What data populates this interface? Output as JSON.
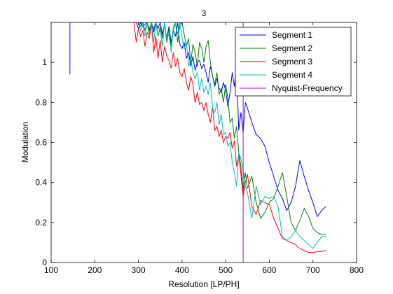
{
  "chart_data": {
    "type": "line",
    "title": "3",
    "xlabel": "Resolution [LP/PH]",
    "ylabel": "Modulation",
    "xlim": [
      100,
      800
    ],
    "ylim": [
      0,
      1.2
    ],
    "xticks": [
      100,
      200,
      300,
      400,
      500,
      600,
      700,
      800
    ],
    "yticks": [
      0,
      0.2,
      0.4,
      0.6,
      0.8,
      1
    ],
    "xtick_labels": [
      "100",
      "200",
      "300",
      "400",
      "500",
      "600",
      "700",
      "800"
    ],
    "ytick_labels": [
      "0",
      "0.2",
      "0.4",
      "0.6",
      "0.8",
      "1"
    ],
    "grid": false,
    "legend_position": "top-right",
    "series": [
      {
        "name": "Segment 1",
        "color": "#0000ff",
        "x": [
          143,
          143,
          295,
          300,
          305,
          310,
          315,
          320,
          325,
          330,
          335,
          340,
          345,
          350,
          355,
          360,
          365,
          370,
          375,
          380,
          385,
          390,
          395,
          400,
          405,
          410,
          415,
          420,
          425,
          430,
          435,
          440,
          445,
          450,
          455,
          460,
          465,
          470,
          475,
          480,
          485,
          490,
          495,
          500,
          505,
          510,
          515,
          520,
          525,
          530,
          535,
          540,
          545,
          550,
          560,
          570,
          580,
          590,
          600,
          610,
          620,
          630,
          640,
          650,
          660,
          670,
          680,
          690,
          700,
          710,
          720,
          730
        ],
        "y": [
          0.94,
          1.2,
          1.2,
          1.17,
          1.2,
          1.18,
          1.19,
          1.2,
          1.16,
          1.2,
          1.15,
          1.2,
          1.17,
          1.2,
          1.14,
          1.19,
          1.12,
          1.18,
          1.1,
          1.16,
          1.13,
          1.2,
          1.09,
          1.07,
          1.1,
          1.02,
          1.05,
          0.98,
          1.03,
          0.96,
          1.0,
          1.01,
          0.97,
          0.99,
          0.95,
          0.9,
          0.98,
          0.93,
          0.88,
          0.92,
          0.87,
          0.85,
          0.9,
          0.86,
          0.78,
          0.85,
          0.95,
          0.88,
          0.97,
          0.66,
          0.75,
          0.65,
          0.8,
          0.77,
          0.7,
          0.64,
          0.62,
          0.58,
          0.5,
          0.43,
          0.36,
          0.32,
          0.26,
          0.3,
          0.38,
          0.51,
          0.43,
          0.36,
          0.3,
          0.23,
          0.26,
          0.28
        ]
      },
      {
        "name": "Segment 2",
        "color": "#008000",
        "x": [
          300,
          305,
          310,
          315,
          320,
          325,
          330,
          335,
          340,
          345,
          350,
          355,
          360,
          365,
          370,
          375,
          380,
          385,
          390,
          395,
          400,
          405,
          410,
          415,
          420,
          425,
          430,
          435,
          440,
          445,
          450,
          455,
          460,
          465,
          470,
          475,
          480,
          485,
          490,
          495,
          500,
          505,
          510,
          515,
          520,
          525,
          530,
          535,
          540,
          545,
          550,
          560,
          570,
          580,
          590,
          600,
          610,
          620,
          630,
          640,
          650,
          660,
          670,
          680,
          690,
          700,
          710,
          720,
          730
        ],
        "y": [
          1.2,
          1.18,
          1.2,
          1.16,
          1.2,
          1.14,
          1.19,
          1.17,
          1.2,
          1.13,
          1.18,
          1.12,
          1.2,
          1.1,
          1.17,
          1.08,
          1.16,
          1.2,
          1.1,
          1.19,
          1.2,
          1.14,
          1.08,
          1.12,
          1.0,
          1.09,
          1.05,
          0.98,
          1.1,
          1.07,
          1.0,
          1.08,
          1.11,
          1.0,
          0.93,
          0.89,
          0.95,
          0.84,
          0.87,
          0.8,
          0.89,
          0.82,
          0.7,
          0.72,
          0.62,
          0.68,
          0.55,
          0.48,
          0.35,
          0.45,
          0.37,
          0.43,
          0.3,
          0.22,
          0.25,
          0.3,
          0.32,
          0.38,
          0.45,
          0.33,
          0.2,
          0.16,
          0.21,
          0.27,
          0.23,
          0.17,
          0.15,
          0.14,
          0.14
        ]
      },
      {
        "name": "Segment 3",
        "color": "#ff0000",
        "x": [
          290,
          295,
          300,
          305,
          310,
          315,
          320,
          325,
          330,
          335,
          340,
          345,
          350,
          355,
          360,
          365,
          370,
          375,
          380,
          385,
          390,
          395,
          400,
          405,
          410,
          415,
          420,
          425,
          430,
          435,
          440,
          445,
          450,
          455,
          460,
          465,
          470,
          475,
          480,
          485,
          490,
          495,
          500,
          505,
          510,
          515,
          520,
          525,
          530,
          535,
          540,
          545,
          550,
          560,
          570,
          580,
          590,
          600,
          610,
          620,
          630,
          640,
          650,
          660,
          670,
          680,
          690,
          700,
          710,
          720,
          730
        ],
        "y": [
          1.2,
          1.1,
          1.17,
          1.13,
          1.16,
          1.08,
          1.15,
          1.12,
          1.2,
          1.05,
          1.13,
          1.02,
          1.11,
          1.0,
          1.08,
          1.03,
          1.01,
          0.97,
          1.05,
          0.98,
          1.02,
          0.95,
          0.93,
          0.97,
          0.9,
          0.86,
          0.93,
          0.89,
          0.8,
          0.85,
          0.79,
          0.8,
          0.76,
          0.8,
          0.74,
          0.7,
          0.78,
          0.66,
          0.68,
          0.63,
          0.66,
          0.6,
          0.63,
          0.62,
          0.65,
          0.57,
          0.61,
          0.48,
          0.54,
          0.44,
          0.33,
          0.4,
          0.44,
          0.28,
          0.24,
          0.31,
          0.3,
          0.29,
          0.22,
          0.17,
          0.12,
          0.11,
          0.1,
          0.09,
          0.07,
          0.06,
          0.05,
          0.05,
          0.055,
          0.055,
          0.06
        ]
      },
      {
        "name": "Segment 4",
        "color": "#00bfbf",
        "x": [
          300,
          305,
          310,
          315,
          320,
          325,
          330,
          335,
          340,
          345,
          350,
          355,
          360,
          365,
          370,
          375,
          380,
          385,
          390,
          395,
          400,
          405,
          410,
          415,
          420,
          425,
          430,
          435,
          440,
          445,
          450,
          455,
          460,
          465,
          470,
          475,
          480,
          485,
          490,
          495,
          500,
          505,
          510,
          515,
          520,
          525,
          530,
          535,
          540,
          545,
          550,
          560,
          570,
          580,
          590,
          600,
          610,
          620,
          630,
          640,
          650,
          660,
          670,
          680,
          690,
          700,
          710,
          720,
          730
        ],
        "y": [
          1.2,
          1.16,
          1.19,
          1.13,
          1.2,
          1.17,
          1.2,
          1.1,
          1.2,
          1.14,
          1.16,
          1.08,
          1.2,
          1.12,
          1.14,
          1.05,
          1.18,
          1.2,
          1.14,
          1.2,
          1.12,
          1.07,
          1.1,
          0.98,
          1.03,
          0.95,
          0.92,
          0.95,
          0.86,
          0.92,
          0.85,
          0.88,
          0.84,
          0.9,
          0.77,
          0.75,
          0.8,
          0.69,
          0.74,
          0.64,
          0.65,
          0.58,
          0.6,
          0.5,
          0.45,
          0.38,
          0.55,
          0.52,
          0.46,
          0.38,
          0.35,
          0.22,
          0.38,
          0.29,
          0.33,
          0.32,
          0.33,
          0.28,
          0.13,
          0.11,
          0.13,
          0.16,
          0.13,
          0.11,
          0.09,
          0.07,
          0.1,
          0.13,
          0.13
        ]
      },
      {
        "name": "Nyquist-Frequency",
        "color": "#bf00bf",
        "x": [
          540,
          540
        ],
        "y": [
          0,
          1.2
        ]
      }
    ]
  }
}
